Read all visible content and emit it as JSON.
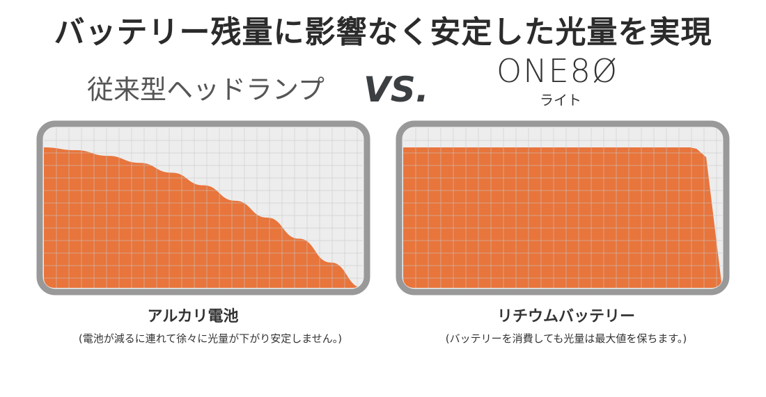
{
  "headline": "バッテリー残量に影響なく安定した光量を実現",
  "comparison": {
    "left_label": "従来型ヘッドランプ",
    "vs": "VS.",
    "brand": "ONE8Ø",
    "brand_sub": "ライト"
  },
  "colors": {
    "fill": "#E8753C",
    "frame": "#999999",
    "grid": "#C8C8C8",
    "background": "#EDEDED"
  },
  "chart_data": [
    {
      "type": "area",
      "title": "アルカリ電池",
      "annotation": "(電池が減るに連れて徐々に光量が下がり安定しません。)",
      "grid": true,
      "x": [
        0,
        0.1,
        0.2,
        0.3,
        0.4,
        0.5,
        0.6,
        0.7,
        0.8,
        0.9,
        1.0
      ],
      "y": [
        1.0,
        0.98,
        0.94,
        0.89,
        0.82,
        0.73,
        0.62,
        0.5,
        0.35,
        0.18,
        0
      ]
    },
    {
      "type": "area",
      "title": "リチウムバッテリー",
      "annotation": "(バッテリーを消費しても光量は最大値を保ちます。)",
      "grid": true,
      "x": [
        0,
        0.1,
        0.2,
        0.3,
        0.4,
        0.5,
        0.6,
        0.7,
        0.8,
        0.9,
        0.92,
        0.95,
        1.0
      ],
      "y": [
        1.0,
        1.0,
        1.0,
        1.0,
        1.0,
        1.0,
        1.0,
        1.0,
        1.0,
        1.0,
        0.99,
        0.93,
        0
      ]
    }
  ]
}
